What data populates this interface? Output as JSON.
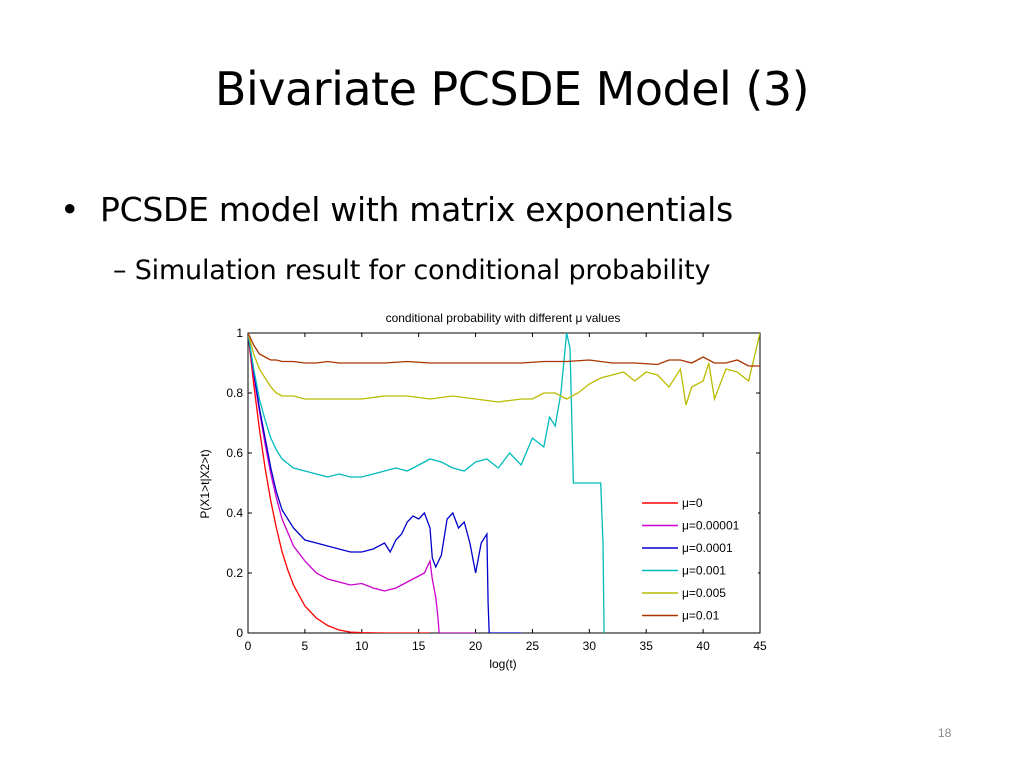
{
  "slide": {
    "title": "Bivariate PCSDE Model (3)",
    "bullet": "PCSDE model with matrix exponentials",
    "sub_bullet": "Simulation result for conditional probability",
    "page_number": "18",
    "bullet_symbol": "•",
    "sub_bullet_symbol": "–"
  },
  "chart_data": {
    "type": "line",
    "title": "conditional probability with different μ values",
    "xlabel": "log(t)",
    "ylabel": "P(X1>t|X2>t)",
    "xlim": [
      0,
      45
    ],
    "ylim": [
      0,
      1
    ],
    "xticks": [
      0,
      5,
      10,
      15,
      20,
      25,
      30,
      35,
      40,
      45
    ],
    "yticks": [
      0,
      0.2,
      0.4,
      0.6,
      0.8,
      1
    ],
    "ytick_labels": [
      "0",
      "0.2",
      "0.4",
      "0.6",
      "0.8",
      "1"
    ],
    "legend_position": "lower-right",
    "grid": false,
    "series": [
      {
        "name": "μ=0",
        "color": "#ff0000",
        "x": [
          0,
          0.5,
          1,
          1.5,
          2,
          2.5,
          3,
          3.5,
          4,
          5,
          6,
          7,
          8,
          9,
          10,
          12,
          14,
          16
        ],
        "y": [
          1.0,
          0.83,
          0.68,
          0.55,
          0.44,
          0.35,
          0.27,
          0.21,
          0.16,
          0.09,
          0.05,
          0.025,
          0.01,
          0.003,
          0.001,
          0,
          0,
          0
        ]
      },
      {
        "name": "μ=0.00001",
        "color": "#cc00cc",
        "x": [
          0,
          0.5,
          1,
          1.5,
          2,
          2.5,
          3,
          4,
          5,
          6,
          7,
          8,
          9,
          10,
          11,
          12,
          13,
          14,
          15,
          15.5,
          16,
          16.2,
          16.5,
          16.7,
          16.8,
          17,
          18,
          20
        ],
        "y": [
          1.0,
          0.86,
          0.74,
          0.63,
          0.53,
          0.45,
          0.38,
          0.29,
          0.24,
          0.2,
          0.18,
          0.17,
          0.16,
          0.165,
          0.15,
          0.14,
          0.15,
          0.17,
          0.19,
          0.2,
          0.24,
          0.18,
          0.12,
          0.05,
          0,
          0,
          0,
          0
        ]
      },
      {
        "name": "μ=0.0001",
        "color": "#0000cc",
        "x": [
          0,
          0.5,
          1,
          1.5,
          2,
          2.5,
          3,
          4,
          5,
          6,
          7,
          8,
          9,
          10,
          11,
          12,
          12.5,
          13,
          13.5,
          14,
          14.5,
          15,
          15.5,
          16,
          16.2,
          16.5,
          17,
          17.5,
          18,
          18.5,
          19,
          19.5,
          20,
          20.5,
          21,
          21.1,
          21.2,
          22,
          24
        ],
        "y": [
          1.0,
          0.87,
          0.75,
          0.65,
          0.55,
          0.47,
          0.41,
          0.35,
          0.31,
          0.3,
          0.29,
          0.28,
          0.27,
          0.27,
          0.28,
          0.3,
          0.27,
          0.31,
          0.33,
          0.37,
          0.39,
          0.38,
          0.4,
          0.35,
          0.25,
          0.22,
          0.26,
          0.38,
          0.4,
          0.35,
          0.37,
          0.3,
          0.2,
          0.3,
          0.33,
          0.1,
          0,
          0,
          0
        ]
      },
      {
        "name": "μ=0.001",
        "color": "#00bbbb",
        "x": [
          0,
          0.5,
          1,
          1.5,
          2,
          2.5,
          3,
          4,
          5,
          6,
          7,
          8,
          9,
          10,
          11,
          12,
          13,
          14,
          15,
          16,
          17,
          18,
          19,
          20,
          21,
          22,
          23,
          24,
          25,
          26,
          26.5,
          27,
          27.5,
          28,
          28.3,
          28.6,
          29,
          29.5,
          30,
          31,
          31.2,
          31.3
        ],
        "y": [
          1.0,
          0.88,
          0.78,
          0.71,
          0.65,
          0.61,
          0.58,
          0.55,
          0.54,
          0.53,
          0.52,
          0.53,
          0.52,
          0.52,
          0.53,
          0.54,
          0.55,
          0.54,
          0.56,
          0.58,
          0.57,
          0.55,
          0.54,
          0.57,
          0.58,
          0.55,
          0.6,
          0.56,
          0.65,
          0.62,
          0.72,
          0.69,
          0.8,
          1.0,
          0.95,
          0.5,
          0.5,
          0.5,
          0.5,
          0.5,
          0.3,
          0
        ]
      },
      {
        "name": "μ=0.005",
        "color": "#bbbb00",
        "x": [
          0,
          0.5,
          1,
          1.5,
          2,
          2.5,
          3,
          4,
          5,
          6,
          7,
          8,
          9,
          10,
          12,
          14,
          16,
          18,
          20,
          22,
          24,
          25,
          26,
          27,
          28,
          29,
          30,
          31,
          32,
          33,
          34,
          35,
          36,
          37,
          38,
          38.5,
          39,
          40,
          40.5,
          41,
          42,
          43,
          44,
          44.5,
          45
        ],
        "y": [
          1.0,
          0.93,
          0.88,
          0.85,
          0.82,
          0.8,
          0.79,
          0.79,
          0.78,
          0.78,
          0.78,
          0.78,
          0.78,
          0.78,
          0.79,
          0.79,
          0.78,
          0.79,
          0.78,
          0.77,
          0.78,
          0.78,
          0.8,
          0.8,
          0.78,
          0.8,
          0.83,
          0.85,
          0.86,
          0.87,
          0.84,
          0.87,
          0.86,
          0.82,
          0.88,
          0.76,
          0.82,
          0.84,
          0.9,
          0.78,
          0.88,
          0.87,
          0.84,
          0.92,
          1.0
        ]
      },
      {
        "name": "μ=0.01",
        "color": "#aa3300",
        "x": [
          0,
          0.5,
          1,
          1.5,
          2,
          2.5,
          3,
          4,
          5,
          6,
          7,
          8,
          10,
          12,
          14,
          16,
          18,
          20,
          22,
          24,
          26,
          28,
          30,
          32,
          34,
          36,
          37,
          38,
          39,
          40,
          41,
          42,
          43,
          44,
          45
        ],
        "y": [
          1.0,
          0.96,
          0.93,
          0.92,
          0.91,
          0.91,
          0.905,
          0.905,
          0.9,
          0.9,
          0.905,
          0.9,
          0.9,
          0.9,
          0.905,
          0.9,
          0.9,
          0.9,
          0.9,
          0.9,
          0.905,
          0.905,
          0.91,
          0.9,
          0.9,
          0.895,
          0.91,
          0.91,
          0.9,
          0.92,
          0.9,
          0.9,
          0.91,
          0.89,
          0.89
        ]
      }
    ]
  }
}
